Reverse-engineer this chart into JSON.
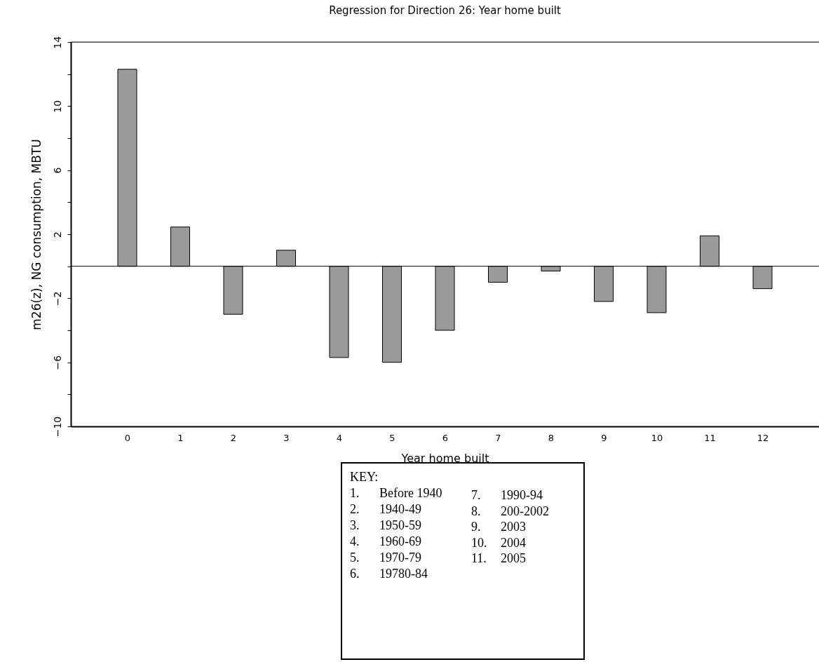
{
  "chart_data": {
    "type": "bar",
    "title": "Regression for Direction 26: Year home built",
    "xlabel": "Year home built",
    "ylabel": "m26(z),  NG consumption, MBTU",
    "x": [
      0,
      1,
      2,
      3,
      4,
      5,
      6,
      7,
      8,
      9,
      10,
      11,
      12
    ],
    "values": [
      12.3,
      2.45,
      -3.0,
      1.0,
      -5.7,
      -6.0,
      -4.0,
      -1.0,
      -0.3,
      -2.2,
      -2.9,
      1.9,
      -1.4
    ],
    "color": "#9a9a9a",
    "xlim": [
      -1,
      13
    ],
    "xticks": [
      0,
      1,
      2,
      3,
      4,
      5,
      6,
      7,
      8,
      9,
      10,
      11,
      12
    ],
    "ylim": [
      -10,
      14
    ],
    "yticks": [
      -10,
      {
        "value": -8,
        "label": null
      },
      -6,
      {
        "value": -4,
        "label": null
      },
      -2,
      {
        "value": 0,
        "label": null
      },
      2,
      {
        "value": 4,
        "label": null
      },
      6,
      {
        "value": 8,
        "label": null
      },
      10,
      {
        "value": 12,
        "label": null
      },
      14
    ],
    "ref_lines": [
      {
        "axis": "y",
        "value": 0,
        "color": "#000000"
      }
    ],
    "grid": false,
    "annotations": [
      "KEY:",
      "1.     Before 1940",
      "2.     1940-49",
      "3.     1950-59",
      "4.     1960-69",
      "5.     1970-79",
      "6.     19780-84",
      "7.     1990-94",
      "8.     200-2002",
      "9.     2003",
      "10.   2004",
      "11.   2005"
    ]
  }
}
